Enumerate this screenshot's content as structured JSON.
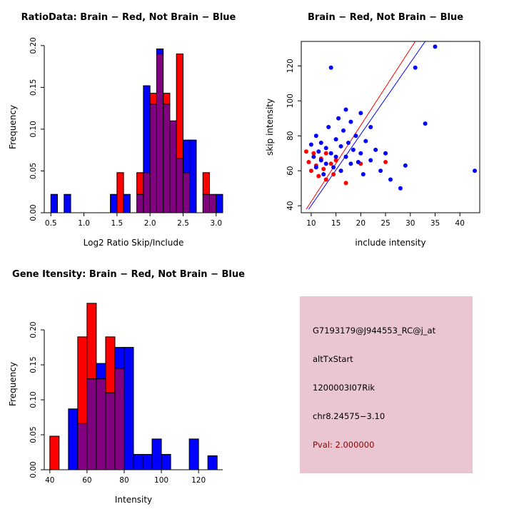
{
  "figure": {
    "background": "#FFFFFF"
  },
  "colors": {
    "brain": "#FF0000",
    "not_brain": "#0000FF",
    "overlap": "#800080",
    "info_box_bg": "#E9C6D1",
    "pval_text": "#8B0000",
    "axis": "#000000"
  },
  "chart_data": [
    {
      "panel": "top-left",
      "type": "bar",
      "subtype": "dual-histogram",
      "title": "RatioData: Brain − Red, Not Brain − Blue",
      "xlabel": "Log2 Ratio Skip/Include",
      "ylabel": "Frequency",
      "bin_start": 0.5,
      "bin_width": 0.1,
      "series": [
        {
          "name": "Brain (Red)",
          "color": "#FF0000",
          "values": [
            0,
            0,
            0,
            0,
            0,
            0,
            0,
            0,
            0,
            0,
            0.048,
            0,
            0,
            0.048,
            0.048,
            0.143,
            0.19,
            0.143,
            0.11,
            0.19,
            0.048,
            0,
            0,
            0.048,
            0.022,
            0
          ]
        },
        {
          "name": "Not Brain (Blue)",
          "color": "#0000FF",
          "values": [
            0.022,
            0,
            0.022,
            0,
            0,
            0,
            0,
            0,
            0,
            0.022,
            0,
            0.022,
            0,
            0.022,
            0.152,
            0.13,
            0.196,
            0.13,
            0.11,
            0.065,
            0.087,
            0.087,
            0,
            0.022,
            0.022,
            0.022
          ]
        }
      ],
      "overlap_color": "#800080",
      "xlim": [
        0.4,
        3.1
      ],
      "ylim": [
        0,
        0.205
      ],
      "xticks": [
        0.5,
        1.0,
        1.5,
        2.0,
        2.5,
        3.0
      ],
      "xtick_labels": [
        "0.5",
        "1.0",
        "1.5",
        "2.0",
        "2.5",
        "3.0"
      ],
      "yticks": [
        0,
        0.05,
        0.1,
        0.15,
        0.2
      ],
      "ytick_labels": [
        "0.00",
        "0.05",
        "0.10",
        "0.15",
        "0.20"
      ],
      "grid": false,
      "legend": "none"
    },
    {
      "panel": "top-right",
      "type": "scatter",
      "subtype": "scatter",
      "title": "Brain − Red, Not Brain − Blue",
      "xlabel": "include intensity",
      "ylabel": "skip intensity",
      "xlim": [
        8,
        44
      ],
      "ylim": [
        36,
        134
      ],
      "xticks": [
        10,
        15,
        20,
        25,
        30,
        35,
        40
      ],
      "xtick_labels": [
        "10",
        "15",
        "20",
        "25",
        "30",
        "35",
        "40"
      ],
      "yticks": [
        40,
        60,
        80,
        100,
        120
      ],
      "ytick_labels": [
        "40",
        "60",
        "80",
        "100",
        "120"
      ],
      "series": [
        {
          "name": "Brain (Red)",
          "color": "#FF0000",
          "points": [
            [
              9,
              71
            ],
            [
              9.5,
              65
            ],
            [
              10,
              60
            ],
            [
              10.5,
              70
            ],
            [
              11,
              63
            ],
            [
              11.5,
              57
            ],
            [
              12,
              67
            ],
            [
              12.5,
              61
            ],
            [
              13,
              55
            ],
            [
              13,
              70
            ],
            [
              14,
              64
            ],
            [
              14.5,
              58
            ],
            [
              15,
              66
            ],
            [
              16,
              60
            ],
            [
              17,
              53
            ],
            [
              20,
              64
            ],
            [
              25,
              65
            ]
          ]
        },
        {
          "name": "Not Brain (Blue)",
          "color": "#0000FF",
          "points": [
            [
              10,
              75
            ],
            [
              10.5,
              68
            ],
            [
              11,
              80
            ],
            [
              11,
              62
            ],
            [
              11.5,
              71
            ],
            [
              12,
              66
            ],
            [
              12,
              76
            ],
            [
              12.5,
              58
            ],
            [
              13,
              73
            ],
            [
              13,
              64
            ],
            [
              13.5,
              85
            ],
            [
              14,
              119
            ],
            [
              14,
              70
            ],
            [
              14.5,
              62
            ],
            [
              15,
              78
            ],
            [
              15,
              68
            ],
            [
              15.5,
              90
            ],
            [
              16,
              74
            ],
            [
              16,
              60
            ],
            [
              16.5,
              83
            ],
            [
              17,
              68
            ],
            [
              17,
              95
            ],
            [
              17.5,
              76
            ],
            [
              18,
              64
            ],
            [
              18,
              88
            ],
            [
              18.5,
              72
            ],
            [
              19,
              80
            ],
            [
              19.5,
              65
            ],
            [
              20,
              93
            ],
            [
              20,
              70
            ],
            [
              20.5,
              58
            ],
            [
              21,
              77
            ],
            [
              22,
              85
            ],
            [
              22,
              66
            ],
            [
              23,
              72
            ],
            [
              24,
              60
            ],
            [
              25,
              70
            ],
            [
              26,
              55
            ],
            [
              28,
              50
            ],
            [
              29,
              63
            ],
            [
              31,
              119
            ],
            [
              33,
              87
            ],
            [
              35,
              131
            ],
            [
              43,
              60
            ]
          ]
        }
      ],
      "lines": [
        {
          "name": "brain-fit-line",
          "color": "#FF0000",
          "from": [
            9,
            38
          ],
          "to": [
            31,
            134
          ]
        },
        {
          "name": "not-brain-fit-line",
          "color": "#0000FF",
          "from": [
            9.5,
            38
          ],
          "to": [
            33,
            134
          ]
        }
      ],
      "grid": false,
      "legend": "none"
    },
    {
      "panel": "bottom-left",
      "type": "bar",
      "subtype": "dual-histogram",
      "title": "Gene Itensity: Brain − Red, Not Brain − Blue",
      "xlabel": "Intensity",
      "ylabel": "Frequency",
      "bin_start": 40,
      "bin_width": 5,
      "series": [
        {
          "name": "Brain (Red)",
          "color": "#FF0000",
          "values": [
            0.048,
            0,
            0,
            0.19,
            0.238,
            0.13,
            0.19,
            0.145,
            0,
            0,
            0,
            0,
            0,
            0,
            0,
            0,
            0,
            0
          ]
        },
        {
          "name": "Not Brain (Blue)",
          "color": "#0000FF",
          "values": [
            0,
            0,
            0.087,
            0.066,
            0.13,
            0.152,
            0.11,
            0.175,
            0.175,
            0.022,
            0.022,
            0.044,
            0.022,
            0,
            0,
            0.044,
            0,
            0.02
          ]
        }
      ],
      "overlap_color": "#800080",
      "xlim": [
        37,
        133
      ],
      "ylim": [
        0,
        0.245
      ],
      "xticks": [
        40,
        60,
        80,
        100,
        120
      ],
      "xtick_labels": [
        "40",
        "60",
        "80",
        "100",
        "120"
      ],
      "yticks": [
        0,
        0.05,
        0.1,
        0.15,
        0.2
      ],
      "ytick_labels": [
        "0.00",
        "0.05",
        "0.10",
        "0.15",
        "0.20"
      ],
      "grid": false,
      "legend": "none"
    }
  ],
  "info_box": {
    "background": "#E9C6D1",
    "lines": [
      {
        "text": "G7193179@J944553_RC@j_at",
        "color": "#000000"
      },
      {
        "text": "altTxStart",
        "color": "#000000"
      },
      {
        "text": "1200003I07Rik",
        "color": "#000000"
      },
      {
        "text": "chr8.24575−3.10",
        "color": "#000000"
      },
      {
        "text": "Pval: 2.000000",
        "color": "#8B0000"
      }
    ]
  }
}
